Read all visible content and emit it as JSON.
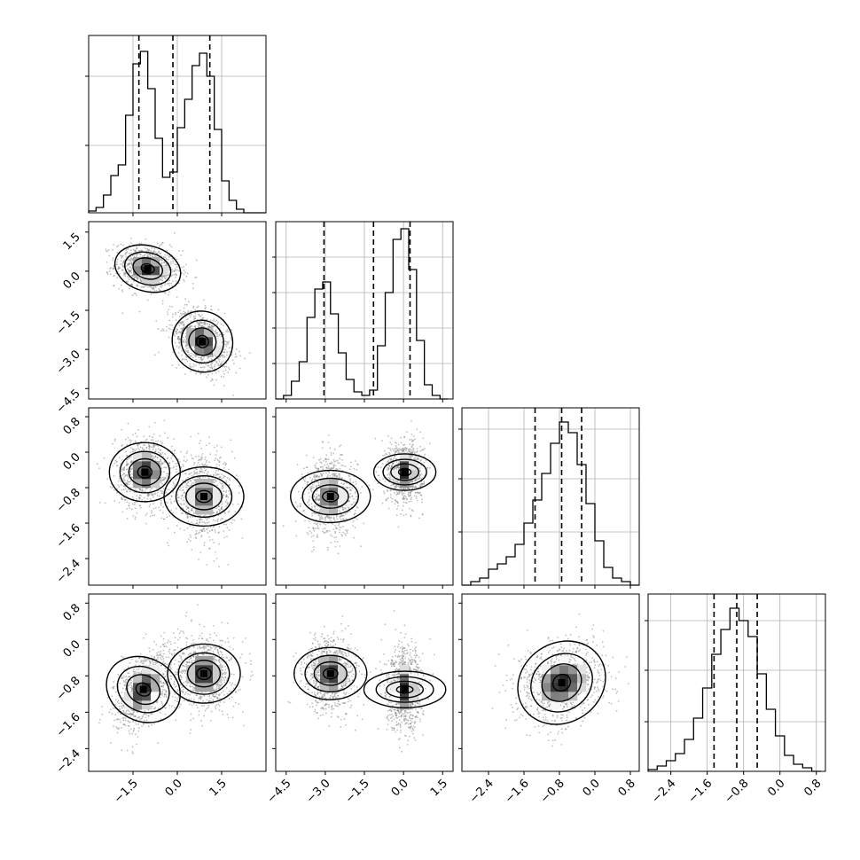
{
  "figure": {
    "type": "corner",
    "n_params": 4,
    "colors": {
      "ink": "#000000",
      "grid": "#b0b0b0",
      "scatter": "#7f7f7f",
      "background": "#ffffff"
    }
  },
  "chart_data": {
    "type": "corner",
    "params": [
      {
        "index": 0,
        "range": [
          -3.0,
          3.0
        ],
        "ticks": [
          -1.5,
          0.0,
          1.5
        ],
        "tick_labels": [
          "−1.5",
          "0.0",
          "1.5"
        ]
      },
      {
        "index": 1,
        "range": [
          -4.9,
          1.9
        ],
        "ticks": [
          -4.5,
          -3.0,
          -1.5,
          0.0,
          1.5
        ],
        "tick_labels": [
          "−4.5",
          "−3.0",
          "−1.5",
          "0.0",
          "1.5"
        ]
      },
      {
        "index": 2,
        "range": [
          -3.0,
          1.0
        ],
        "ticks": [
          -2.4,
          -1.6,
          -0.8,
          0.0,
          0.8
        ],
        "tick_labels": [
          "−2.4",
          "−1.6",
          "−0.8",
          "0.0",
          "0.8"
        ]
      },
      {
        "index": 3,
        "range": [
          -2.9,
          1.0
        ],
        "ticks": [
          -2.4,
          -1.6,
          -0.8,
          0.0,
          0.8
        ],
        "tick_labels": [
          "−2.4",
          "−1.6",
          "−0.8",
          "0.0",
          "0.8"
        ]
      }
    ],
    "histograms": [
      {
        "param": 0,
        "ymax": 1.0,
        "ytick_fracs": [
          0.38,
          0.77
        ],
        "quantiles": [
          -1.3,
          -0.15,
          1.1
        ],
        "bins": [
          -3.0,
          -2.75,
          -2.5,
          -2.25,
          -2.0,
          -1.75,
          -1.5,
          -1.25,
          -1.0,
          -0.75,
          -0.5,
          -0.25,
          0.0,
          0.25,
          0.5,
          0.75,
          1.0,
          1.25,
          1.5,
          1.75,
          2.0,
          2.25,
          2.5,
          2.75
        ],
        "counts": [
          0.01,
          0.03,
          0.1,
          0.21,
          0.27,
          0.55,
          0.84,
          0.91,
          0.7,
          0.42,
          0.2,
          0.23,
          0.48,
          0.64,
          0.83,
          0.9,
          0.77,
          0.47,
          0.18,
          0.07,
          0.02,
          0.0,
          0.0,
          0.0
        ]
      },
      {
        "param": 1,
        "ymax": 1.0,
        "ytick_fracs": [
          0.2,
          0.4,
          0.6,
          0.8
        ],
        "quantiles": [
          -3.05,
          -1.15,
          0.25
        ],
        "bins": [
          -4.9,
          -4.6,
          -4.3,
          -4.0,
          -3.7,
          -3.4,
          -3.1,
          -2.8,
          -2.5,
          -2.2,
          -1.9,
          -1.6,
          -1.3,
          -1.0,
          -0.7,
          -0.4,
          -0.1,
          0.2,
          0.5,
          0.8,
          1.1,
          1.4
        ],
        "counts": [
          0.0,
          0.02,
          0.1,
          0.21,
          0.46,
          0.62,
          0.66,
          0.48,
          0.26,
          0.11,
          0.04,
          0.02,
          0.05,
          0.3,
          0.6,
          0.9,
          0.96,
          0.73,
          0.33,
          0.08,
          0.02,
          0.0
        ]
      },
      {
        "param": 2,
        "ymax": 1.0,
        "ytick_fracs": [
          0.3,
          0.6,
          0.88
        ],
        "quantiles": [
          -1.35,
          -0.75,
          -0.3
        ],
        "bins": [
          -3.0,
          -2.8,
          -2.6,
          -2.4,
          -2.2,
          -2.0,
          -1.8,
          -1.6,
          -1.4,
          -1.2,
          -1.0,
          -0.8,
          -0.6,
          -0.4,
          -0.2,
          0.0,
          0.2,
          0.4,
          0.6,
          0.8
        ],
        "counts": [
          0.0,
          0.02,
          0.04,
          0.09,
          0.12,
          0.16,
          0.23,
          0.35,
          0.48,
          0.63,
          0.8,
          0.92,
          0.86,
          0.68,
          0.46,
          0.25,
          0.1,
          0.04,
          0.02,
          0.0
        ]
      },
      {
        "param": 3,
        "ymax": 1.0,
        "ytick_fracs": [
          0.28,
          0.57,
          0.85
        ],
        "quantiles": [
          -1.45,
          -0.95,
          -0.5
        ],
        "bins": [
          -2.9,
          -2.7,
          -2.5,
          -2.3,
          -2.1,
          -1.9,
          -1.7,
          -1.5,
          -1.3,
          -1.1,
          -0.9,
          -0.7,
          -0.5,
          -0.3,
          -0.1,
          0.1,
          0.3,
          0.5,
          0.7
        ],
        "counts": [
          0.01,
          0.03,
          0.06,
          0.1,
          0.18,
          0.3,
          0.47,
          0.66,
          0.8,
          0.92,
          0.85,
          0.76,
          0.55,
          0.35,
          0.2,
          0.09,
          0.04,
          0.02,
          0.0
        ]
      }
    ],
    "pairs": [
      {
        "x": 0,
        "y": 1,
        "clusters": [
          {
            "cx": -1.0,
            "cy": 0.1,
            "sx": 0.55,
            "sy": 0.45,
            "rho": -0.2,
            "weight": 1.0
          },
          {
            "cx": 0.85,
            "cy": -2.7,
            "sx": 0.5,
            "sy": 0.6,
            "rho": -0.35,
            "weight": 1.0
          }
        ]
      },
      {
        "x": 0,
        "y": 2,
        "clusters": [
          {
            "cx": -1.1,
            "cy": -0.45,
            "sx": 0.5,
            "sy": 0.4,
            "rho": 0.0,
            "weight": 1.0
          },
          {
            "cx": 0.9,
            "cy": -1.0,
            "sx": 0.5,
            "sy": 0.45,
            "rho": 0.0,
            "weight": 0.9
          }
        ]
      },
      {
        "x": 1,
        "y": 2,
        "clusters": [
          {
            "cx": -2.8,
            "cy": -1.0,
            "sx": 0.5,
            "sy": 0.45,
            "rho": 0.0,
            "weight": 0.9
          },
          {
            "cx": 0.05,
            "cy": -0.45,
            "sx": 0.35,
            "sy": 0.35,
            "rho": 0.0,
            "weight": 1.0
          }
        ]
      },
      {
        "x": 0,
        "y": 3,
        "clusters": [
          {
            "cx": -1.15,
            "cy": -1.1,
            "sx": 0.5,
            "sy": 0.45,
            "rho": 0.45,
            "weight": 1.0
          },
          {
            "cx": 0.9,
            "cy": -0.75,
            "sx": 0.5,
            "sy": 0.4,
            "rho": 0.0,
            "weight": 1.0
          }
        ]
      },
      {
        "x": 1,
        "y": 3,
        "clusters": [
          {
            "cx": -2.8,
            "cy": -0.75,
            "sx": 0.5,
            "sy": 0.4,
            "rho": 0.0,
            "weight": 1.0
          },
          {
            "cx": 0.05,
            "cy": -1.1,
            "sx": 0.35,
            "sy": 0.45,
            "rho": 0.0,
            "weight": 1.0
          }
        ]
      },
      {
        "x": 2,
        "y": 3,
        "clusters": [
          {
            "cx": -0.75,
            "cy": -0.95,
            "sx": 0.5,
            "sy": 0.45,
            "rho": 0.2,
            "weight": 1.0
          }
        ]
      }
    ],
    "contour_levels": [
      0.3,
      0.55,
      0.8,
      0.95
    ]
  }
}
